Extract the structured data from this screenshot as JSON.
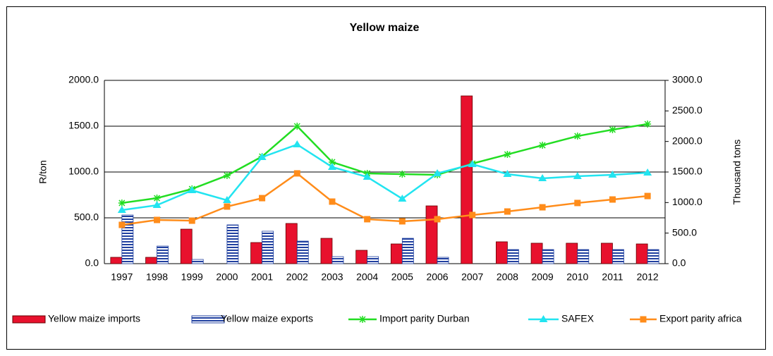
{
  "chart_data": {
    "type": "combo",
    "title": "Yellow maize",
    "ylabel": "R/ton",
    "y2label": "Thousand tons",
    "categories": [
      "1997",
      "1998",
      "1999",
      "2000",
      "2001",
      "2002",
      "2003",
      "2004",
      "2005",
      "2006",
      "2007",
      "2008",
      "2009",
      "2010",
      "2011",
      "2012"
    ],
    "ylim": [
      0,
      2000
    ],
    "yticks": [
      {
        "value": 0,
        "label": "0.0"
      },
      {
        "value": 500,
        "label": "500.0"
      },
      {
        "value": 1000,
        "label": "1000.0"
      },
      {
        "value": 1500,
        "label": "1500.0"
      },
      {
        "value": 2000,
        "label": "2000.0"
      }
    ],
    "y2lim": [
      0,
      3000
    ],
    "y2ticks": [
      {
        "value": 0,
        "label": "0.0"
      },
      {
        "value": 500,
        "label": "500.0"
      },
      {
        "value": 1000,
        "label": "1000.0"
      },
      {
        "value": 1500,
        "label": "1500.0"
      },
      {
        "value": 2000,
        "label": "2000.0"
      },
      {
        "value": 2500,
        "label": "2500.0"
      },
      {
        "value": 3000,
        "label": "3000.0"
      }
    ],
    "grid": true,
    "series": [
      {
        "name": "Yellow maize imports",
        "type": "bar",
        "axis": "y2",
        "color": "#e8112d",
        "values": [
          104,
          104,
          565,
          0,
          346,
          658,
          415,
          219,
          323,
          946,
          2746,
          358,
          335,
          335,
          335,
          323
        ]
      },
      {
        "name": "Yellow maize exports",
        "type": "bar",
        "axis": "y2",
        "color": "#2040a0",
        "values": [
          796,
          288,
          69,
          635,
          531,
          369,
          115,
          115,
          415,
          104,
          0,
          231,
          231,
          231,
          231,
          231
        ]
      },
      {
        "name": "Import parity Durban",
        "type": "line",
        "marker": "star",
        "color": "#22dd22",
        "values": [
          662,
          715,
          815,
          962,
          1169,
          1500,
          1108,
          985,
          977,
          969,
          1092,
          1192,
          1292,
          1392,
          1462,
          1523
        ]
      },
      {
        "name": "SAFEX",
        "type": "line",
        "marker": "triangle",
        "color": "#22e4f0",
        "values": [
          585,
          638,
          800,
          692,
          1162,
          1300,
          1054,
          946,
          708,
          985,
          1085,
          977,
          931,
          954,
          969,
          992
        ]
      },
      {
        "name": "Export parity africa",
        "type": "line",
        "marker": "square",
        "color": "#ff8c1a",
        "values": [
          423,
          477,
          469,
          623,
          715,
          985,
          677,
          485,
          462,
          485,
          531,
          569,
          615,
          662,
          700,
          738
        ]
      }
    ]
  }
}
